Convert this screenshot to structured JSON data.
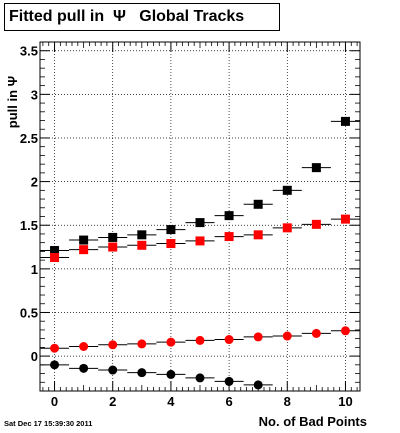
{
  "chart_data": {
    "type": "scatter",
    "title": "Fitted pull in  Ψ   Global Tracks",
    "xlabel": "No. of Bad Points",
    "ylabel": "pull in Ψ",
    "xlim": [
      -0.5,
      10.5
    ],
    "ylim": [
      -0.4,
      3.6
    ],
    "grid": true,
    "x_ticks": [
      0,
      2,
      4,
      6,
      8,
      10
    ],
    "y_ticks": [
      0,
      0.5,
      1,
      1.5,
      2,
      2.5,
      3,
      3.5
    ],
    "y_tick_labels": [
      "0",
      "0.5",
      "1",
      "1.5",
      "2",
      "2.5",
      "3",
      "3.5"
    ],
    "series": [
      {
        "marker": "square",
        "color": "#000000",
        "x": [
          0,
          1,
          2,
          3,
          4,
          5,
          6,
          7,
          8,
          9,
          10
        ],
        "y": [
          1.21,
          1.33,
          1.36,
          1.39,
          1.45,
          1.53,
          1.61,
          1.74,
          1.9,
          2.16,
          2.69
        ]
      },
      {
        "marker": "square",
        "color": "#ff0000",
        "x": [
          0,
          1,
          2,
          3,
          4,
          5,
          6,
          7,
          8,
          9,
          10
        ],
        "y": [
          1.13,
          1.22,
          1.25,
          1.27,
          1.29,
          1.32,
          1.37,
          1.39,
          1.47,
          1.51,
          1.57
        ]
      },
      {
        "marker": "circle",
        "color": "#ff0000",
        "x": [
          0,
          1,
          2,
          3,
          4,
          5,
          6,
          7,
          8,
          9,
          10
        ],
        "y": [
          0.09,
          0.11,
          0.13,
          0.14,
          0.16,
          0.18,
          0.19,
          0.22,
          0.23,
          0.26,
          0.29
        ]
      },
      {
        "marker": "circle",
        "color": "#000000",
        "x": [
          0,
          1,
          2,
          3,
          4,
          5,
          6,
          7
        ],
        "y": [
          -0.1,
          -0.14,
          -0.16,
          -0.19,
          -0.21,
          -0.25,
          -0.29,
          -0.33
        ]
      }
    ]
  },
  "footer": "Sat Dec 17 15:39:30 2011"
}
